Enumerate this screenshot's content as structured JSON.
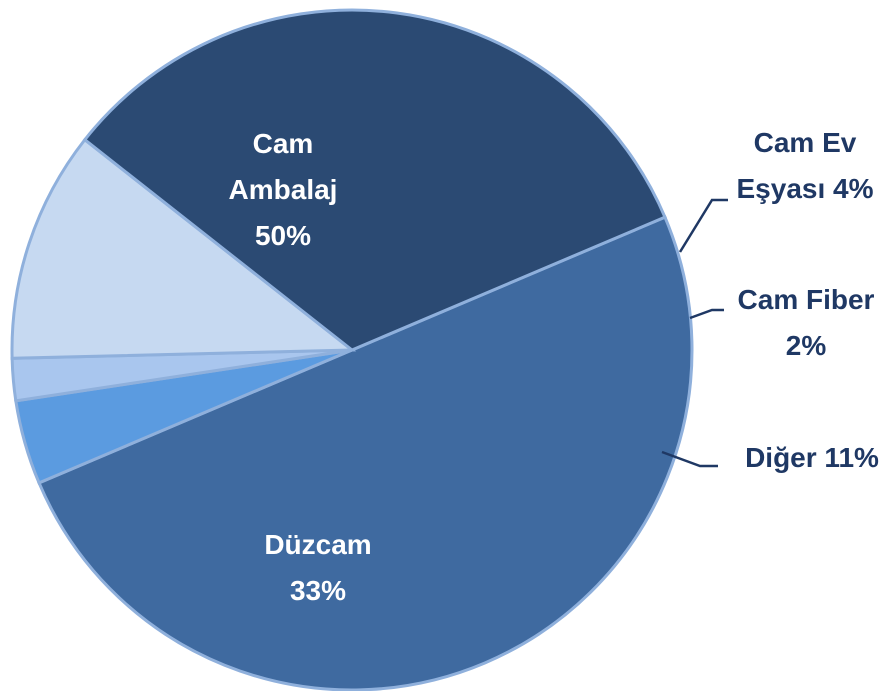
{
  "chart_data": {
    "type": "pie",
    "categories": [
      "Cam Ambalaj",
      "Cam Ev Eşyası",
      "Cam Fiber",
      "Diğer",
      "Düzcam"
    ],
    "values": [
      50,
      4,
      2,
      11,
      33
    ],
    "value_labels": [
      "50%",
      "4%",
      "2%",
      "11%",
      "33%"
    ],
    "colors": [
      "#3f6aa0",
      "#5b9be0",
      "#a9c6ee",
      "#c6d9f1",
      "#2b4a73"
    ]
  }
}
